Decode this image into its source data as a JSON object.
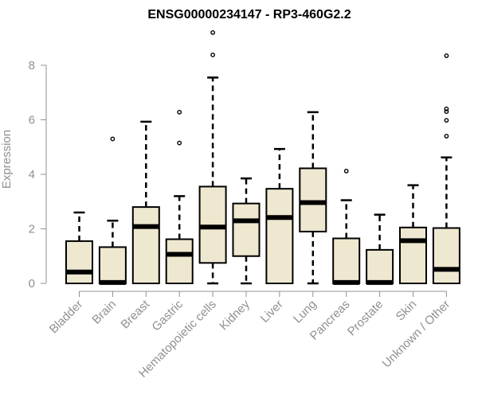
{
  "chart_data": {
    "type": "boxplot",
    "title": "ENSG00000234147 - RP3-460G2.2",
    "xlabel": "",
    "ylabel": "Expression",
    "ylim": [
      0,
      9.3
    ],
    "yticks": [
      0,
      2,
      4,
      6,
      8
    ],
    "colors": {
      "box_fill": "#efe8d0",
      "box_stroke": "#000000",
      "axis": "#909090"
    },
    "categories": [
      "Bladder",
      "Brain",
      "Breast",
      "Gastric",
      "Hematopoietic cells",
      "Kidney",
      "Liver",
      "Lung",
      "Pancreas",
      "Prostate",
      "Skin",
      "Unknown / Other"
    ],
    "boxes": [
      {
        "min": 0,
        "q1": 0,
        "median": 0.4,
        "q3": 1.55,
        "max": 2.6,
        "outliers": []
      },
      {
        "min": 0,
        "q1": 0,
        "median": 0.02,
        "q3": 1.33,
        "max": 2.3,
        "outliers": [
          5.3
        ]
      },
      {
        "min": 0,
        "q1": 0,
        "median": 2.07,
        "q3": 2.8,
        "max": 5.93,
        "outliers": []
      },
      {
        "min": 0,
        "q1": 0,
        "median": 1.05,
        "q3": 1.62,
        "max": 3.2,
        "outliers": [
          5.15,
          6.28
        ]
      },
      {
        "min": 0,
        "q1": 0.75,
        "median": 2.05,
        "q3": 3.55,
        "max": 7.55,
        "outliers": [
          8.38,
          9.2
        ]
      },
      {
        "min": 0,
        "q1": 1.0,
        "median": 2.28,
        "q3": 2.93,
        "max": 3.85,
        "outliers": []
      },
      {
        "min": 0,
        "q1": 0,
        "median": 2.4,
        "q3": 3.47,
        "max": 4.93,
        "outliers": []
      },
      {
        "min": 0,
        "q1": 1.9,
        "median": 2.95,
        "q3": 4.22,
        "max": 6.28,
        "outliers": []
      },
      {
        "min": 0,
        "q1": 0,
        "median": 0.02,
        "q3": 1.65,
        "max": 3.05,
        "outliers": [
          4.12
        ]
      },
      {
        "min": 0,
        "q1": 0,
        "median": 0.02,
        "q3": 1.23,
        "max": 2.52,
        "outliers": []
      },
      {
        "min": 0,
        "q1": 0,
        "median": 1.55,
        "q3": 2.05,
        "max": 3.6,
        "outliers": []
      },
      {
        "min": 0,
        "q1": 0,
        "median": 0.5,
        "q3": 2.03,
        "max": 4.62,
        "outliers": [
          5.4,
          5.98,
          6.3,
          6.4,
          8.35
        ]
      }
    ]
  }
}
